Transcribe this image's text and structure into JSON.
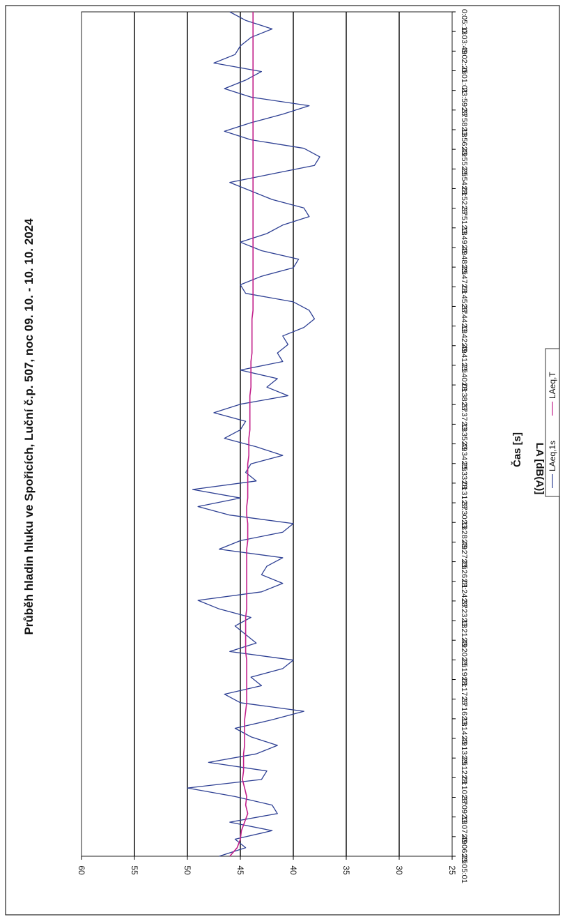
{
  "chart_data": {
    "type": "line",
    "orientation": "rotated 90° counter-clockwise",
    "title": "Průběh hladin hluku ve Spořicích, Luční č.p. 507, noc 09. 10. - 10. 10. 2024",
    "xlabel": "Čas [s]",
    "ylabel": "LA [dB(A)]",
    "ylim": [
      25,
      60
    ],
    "yticks": [
      60,
      55,
      50,
      45,
      40,
      35,
      30,
      25
    ],
    "grid": true,
    "legend_position": "bottom",
    "x_tick_labels": [
      "23:05:01",
      "23:06:25",
      "23:07:49",
      "23:09:13",
      "23:10:37",
      "23:12:01",
      "23:13:25",
      "23:14:49",
      "23:16:13",
      "23:17:37",
      "23:19:01",
      "23:20:25",
      "23:21:49",
      "23:23:13",
      "23:24:37",
      "23:26:01",
      "23:27:25",
      "23:28:49",
      "23:30:13",
      "23:31:37",
      "23:33:01",
      "23:34:25",
      "23:35:49",
      "23:37:13",
      "23:38:37",
      "23:40:01",
      "23:41:25",
      "23:42:49",
      "23:44:13",
      "23:45:37",
      "23:47:01",
      "23:48:25",
      "23:49:49",
      "23:51:13",
      "23:52:37",
      "23:54:01",
      "23:55:25",
      "23:56:49",
      "23:58:13",
      "23:59:37",
      "0:01:01",
      "0:02:25",
      "0:03:49",
      "0:05:13"
    ],
    "series": [
      {
        "name": "LAeq,1s",
        "color": "#2d3f93",
        "summary_values": [
          47.0,
          44.5,
          45.5,
          42.0,
          46.0,
          41.5,
          42.0,
          45.5,
          50.0,
          43.0,
          42.5,
          48.0,
          43.5,
          41.5,
          44.0,
          45.5,
          42.0,
          39.0,
          45.0,
          46.5,
          43.0,
          44.0,
          41.0,
          40.0,
          46.0,
          43.5,
          44.5,
          45.5,
          44.0,
          47.0,
          49.0,
          43.0,
          41.0,
          43.0,
          42.5,
          41.0,
          47.0,
          45.0,
          41.0,
          40.0,
          46.0,
          49.0,
          45.0,
          49.5,
          43.5,
          44.5,
          44.0,
          41.0,
          43.5,
          46.5,
          45.0,
          44.5,
          47.5,
          45.0,
          40.5,
          42.5,
          41.5,
          45.0,
          41.0,
          41.5,
          40.5,
          41.0,
          39.0,
          38.0,
          38.5,
          40.0,
          44.5,
          45.0,
          43.0,
          40.0,
          39.5,
          43.0,
          45.0,
          42.5,
          41.0,
          38.5,
          39.0,
          42.0,
          44.0,
          46.0,
          42.0,
          38.0,
          37.5,
          39.0,
          44.0,
          46.5,
          44.0,
          41.0,
          38.5,
          44.0,
          46.5,
          44.5,
          43.0,
          47.5,
          45.5,
          45.0,
          44.0,
          42.0,
          44.5,
          46.0
        ]
      },
      {
        "name": "LAeq,T",
        "color": "#c21f8a",
        "summary_values": [
          46.0,
          45.3,
          45.0,
          44.9,
          44.6,
          44.3,
          44.5,
          44.4,
          44.6,
          44.8,
          44.7,
          44.7,
          44.7,
          44.6,
          44.6,
          44.6,
          44.6,
          44.5,
          44.4,
          44.4,
          44.4,
          44.4,
          44.4,
          44.4,
          44.5,
          44.5,
          44.5,
          44.5,
          44.5,
          44.4,
          44.4,
          44.4,
          44.4,
          44.4,
          44.4,
          44.4,
          44.4,
          44.3,
          44.3,
          44.3,
          44.4,
          44.4,
          44.3,
          44.3,
          44.3,
          44.3,
          44.3,
          44.2,
          44.2,
          44.2,
          44.1,
          44.1,
          44.1,
          44.1,
          44.1,
          44.0,
          44.0,
          44.0,
          44.0,
          43.9,
          43.9,
          43.9,
          43.9,
          43.9,
          43.8,
          43.8,
          43.8,
          43.8,
          43.8,
          43.8,
          43.8,
          43.8,
          43.8,
          43.8,
          43.8,
          43.8,
          43.8,
          43.8,
          43.8,
          43.8,
          43.8,
          43.8,
          43.8,
          43.8,
          43.8,
          43.8,
          43.8,
          43.8,
          43.8,
          43.8,
          43.8,
          43.8,
          43.8,
          43.8,
          43.8,
          43.8,
          43.8,
          43.8,
          43.8,
          43.8
        ]
      }
    ]
  }
}
